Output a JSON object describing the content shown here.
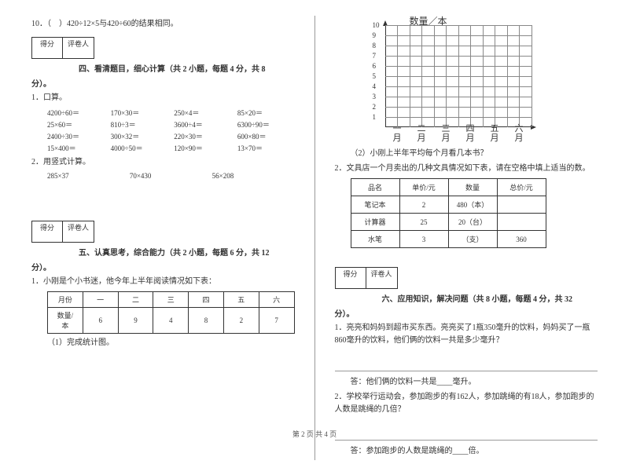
{
  "left": {
    "q10": "10．（　）420÷12×5与420÷60的结果相同。",
    "score_labels": {
      "score": "得分",
      "grader": "评卷人"
    },
    "sec4_title": "四、看清题目，细心计算（共 2 小题，每题 4 分，共 8",
    "sec4_end": "分）。",
    "q4_1": "1．口算。",
    "calc": [
      "4200÷60＝",
      "170×30＝",
      "250×4＝",
      "85×20＝",
      "25×60＝",
      "810÷3＝",
      "3600÷4＝",
      "6300÷90＝",
      "2400÷30＝",
      "300×32＝",
      "220×30＝",
      "600×80＝",
      "15×400＝",
      "4000÷50＝",
      "120×90＝",
      "13×70＝"
    ],
    "q4_2": "2．用竖式计算。",
    "vcalc": [
      "285×37",
      "70×430",
      "56×208"
    ],
    "sec5_title": "五、认真思考，综合能力（共 2 小题，每题 6 分，共 12",
    "sec5_end": "分）。",
    "q5_1": "1．小刚是个小书迷，他今年上半年阅读情况如下表：",
    "t1_head": [
      "月份",
      "一",
      "二",
      "三",
      "四",
      "五",
      "六"
    ],
    "t1_row_label": "数量/本",
    "t1_row": [
      "6",
      "9",
      "4",
      "8",
      "2",
      "7"
    ],
    "q5_1_sub": "（1）完成统计图。"
  },
  "right": {
    "chart": {
      "title": "数量／本",
      "y_ticks": [
        "1",
        "2",
        "3",
        "4",
        "5",
        "6",
        "7",
        "8",
        "9",
        "10"
      ],
      "x_labels": [
        "一月",
        "二月",
        "三月",
        "四月",
        "五月",
        "六月"
      ],
      "grid_color": "#888",
      "y_max": 10,
      "v_lines": 12
    },
    "q5_2": "（2）小刚上半年平均每个月看几本书？",
    "q2": "2．文具店一个月卖出的几种文具情况如下表，请在空格中填上适当的数。",
    "t2_head": [
      "品名",
      "单价/元",
      "数量",
      "总价/元"
    ],
    "t2_rows": [
      [
        "笔记本",
        "2",
        "480（本）",
        ""
      ],
      [
        "计算器",
        "25",
        "20（台）",
        ""
      ],
      [
        "水笔",
        "3",
        "（支）",
        "360"
      ]
    ],
    "score_labels": {
      "score": "得分",
      "grader": "评卷人"
    },
    "sec6_title": "六、应用知识，解决问题（共 8 小题，每题 4 分，共 32",
    "sec6_end": "分）。",
    "q6_1": "1．亮亮和妈妈到超市买东西。亮亮买了1瓶350毫升的饮料，妈妈买了一瓶860毫升的饮料，他们俩的饮料一共是多少毫升？",
    "q6_1_ans": "答：他们俩的饮料一共是____毫升。",
    "q6_2": "2．学校举行运动会，参加跑步的有162人，参加跳绳的有18人，参加跑步的人数是跳绳的几倍？",
    "q6_2_ans": "答：参加跑步的人数是跳绳的____倍。"
  },
  "footer": "第 2 页 共 4 页"
}
